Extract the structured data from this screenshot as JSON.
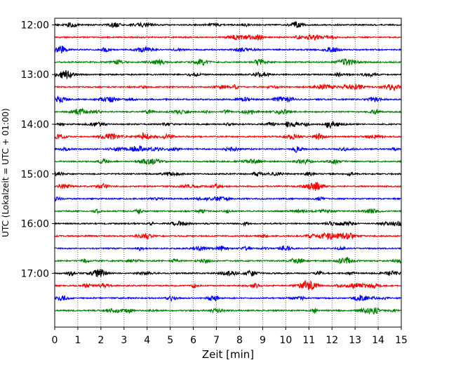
{
  "chart_data": {
    "type": "line",
    "title": "",
    "xlabel": "Zeit  [min]",
    "ylabel": "UTC (Lokalzeit = UTC + 01:00)",
    "xlim": [
      0,
      15
    ],
    "x_ticks": [
      0,
      1,
      2,
      3,
      4,
      5,
      6,
      7,
      8,
      9,
      10,
      11,
      12,
      13,
      14,
      15
    ],
    "x_tick_labels": [
      "0",
      "1",
      "2",
      "3",
      "4",
      "5",
      "6",
      "7",
      "8",
      "9",
      "10",
      "11",
      "12",
      "13",
      "14",
      "15"
    ],
    "y_axis": {
      "inverted": true,
      "unit": "minutes after 12:00 UTC",
      "ylim": [
        -8,
        365
      ],
      "ticks": [
        0,
        60,
        120,
        180,
        240,
        300
      ],
      "tick_labels": [
        "12:00",
        "13:00",
        "14:00",
        "15:00",
        "16:00",
        "17:00"
      ]
    },
    "grid": {
      "x": "dotted vertical at each minute",
      "y": false
    },
    "trace_interval_min": 15,
    "trace_colors": [
      "#000000",
      "#ff0000",
      "#0000ff",
      "#008000"
    ],
    "traces": [
      {
        "start": "12:00",
        "color": "#000000"
      },
      {
        "start": "12:15",
        "color": "#ff0000"
      },
      {
        "start": "12:30",
        "color": "#0000ff"
      },
      {
        "start": "12:45",
        "color": "#008000"
      },
      {
        "start": "13:00",
        "color": "#000000"
      },
      {
        "start": "13:15",
        "color": "#ff0000"
      },
      {
        "start": "13:30",
        "color": "#0000ff"
      },
      {
        "start": "13:45",
        "color": "#008000"
      },
      {
        "start": "14:00",
        "color": "#000000"
      },
      {
        "start": "14:15",
        "color": "#ff0000"
      },
      {
        "start": "14:30",
        "color": "#0000ff"
      },
      {
        "start": "14:45",
        "color": "#008000"
      },
      {
        "start": "15:00",
        "color": "#000000"
      },
      {
        "start": "15:15",
        "color": "#ff0000"
      },
      {
        "start": "15:30",
        "color": "#0000ff"
      },
      {
        "start": "15:45",
        "color": "#008000"
      },
      {
        "start": "16:00",
        "color": "#000000"
      },
      {
        "start": "16:15",
        "color": "#ff0000"
      },
      {
        "start": "16:30",
        "color": "#0000ff"
      },
      {
        "start": "16:45",
        "color": "#008000"
      },
      {
        "start": "17:00",
        "color": "#000000"
      },
      {
        "start": "17:15",
        "color": "#ff0000"
      },
      {
        "start": "17:30",
        "color": "#0000ff"
      },
      {
        "start": "17:45",
        "color": "#008000"
      }
    ]
  }
}
